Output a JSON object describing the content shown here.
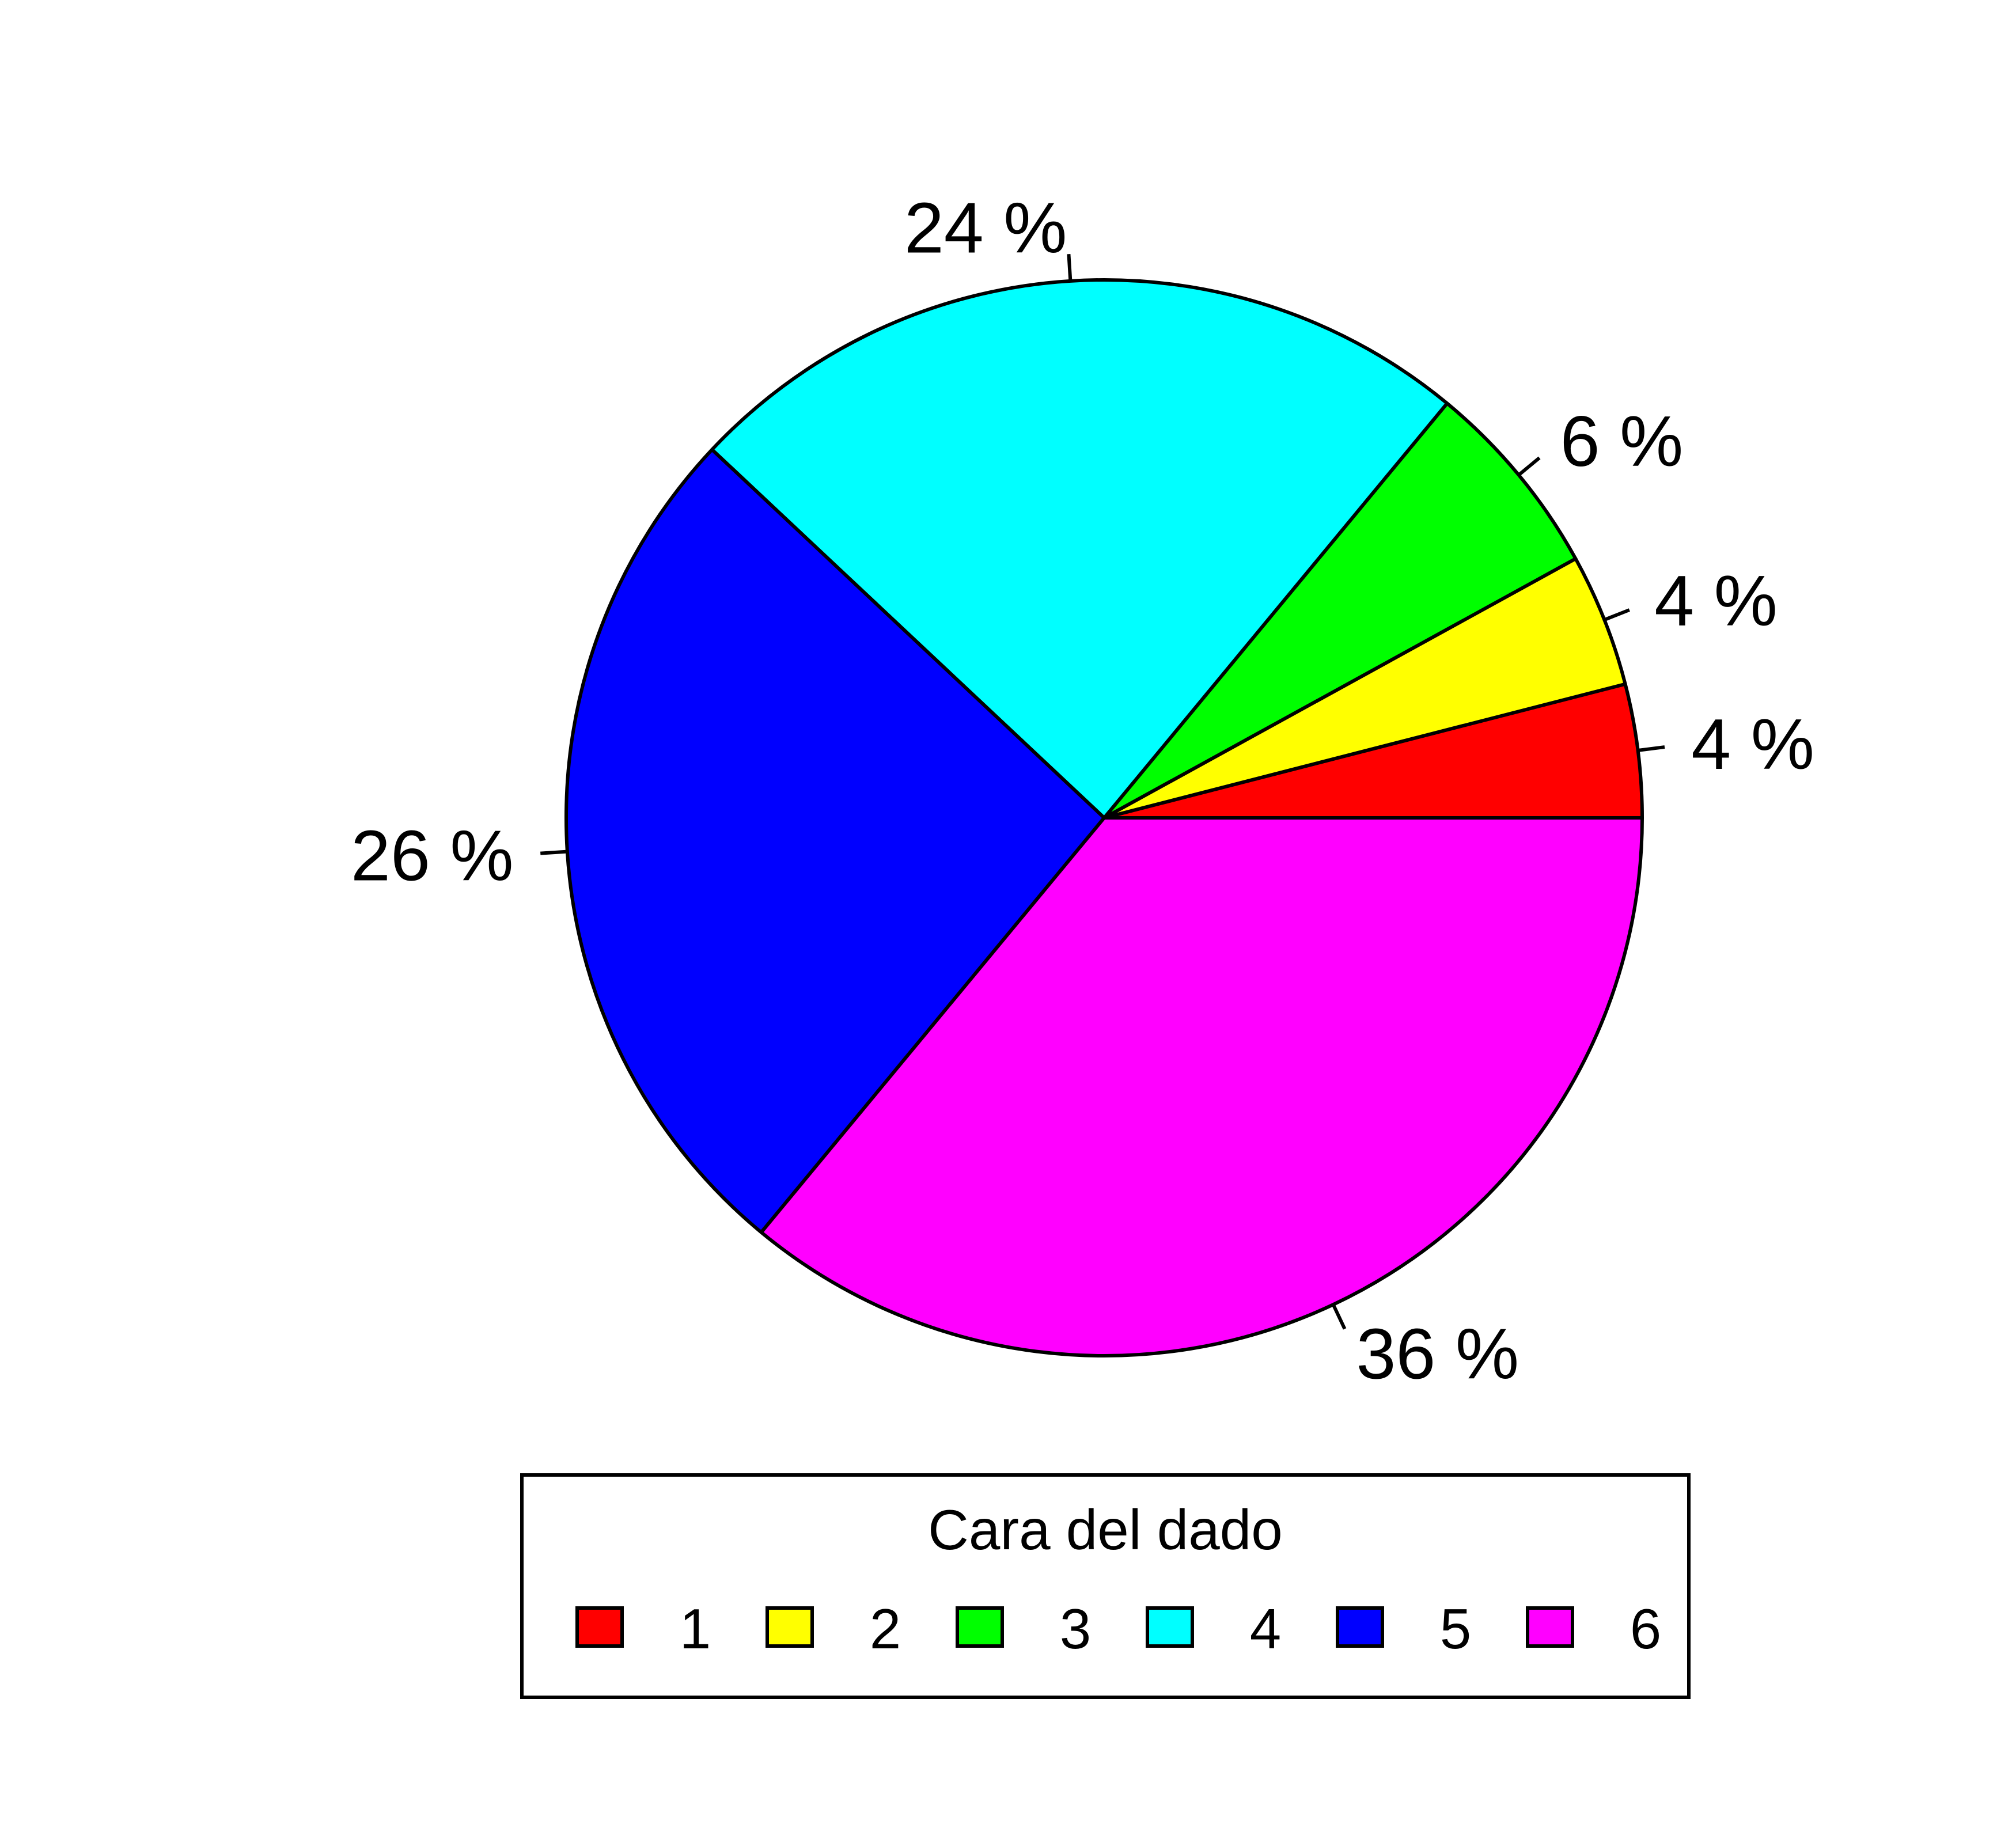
{
  "chart_data": {
    "type": "pie",
    "title": "",
    "categories": [
      "1",
      "2",
      "3",
      "4",
      "5",
      "6"
    ],
    "values": [
      4,
      4,
      6,
      24,
      26,
      36
    ],
    "labels": [
      "4 %",
      "4 %",
      "6 %",
      "24 %",
      "26 %",
      "36 %"
    ],
    "colors": [
      "#FF0000",
      "#FFFF00",
      "#00FF00",
      "#00FFFF",
      "#0000FF",
      "#FF00FF"
    ],
    "start": "3 o'clock",
    "direction": "counterclockwise",
    "legend": {
      "title": "Cara del dado",
      "entries": [
        "1",
        "2",
        "3",
        "4",
        "5",
        "6"
      ],
      "placement": "bottom"
    }
  }
}
